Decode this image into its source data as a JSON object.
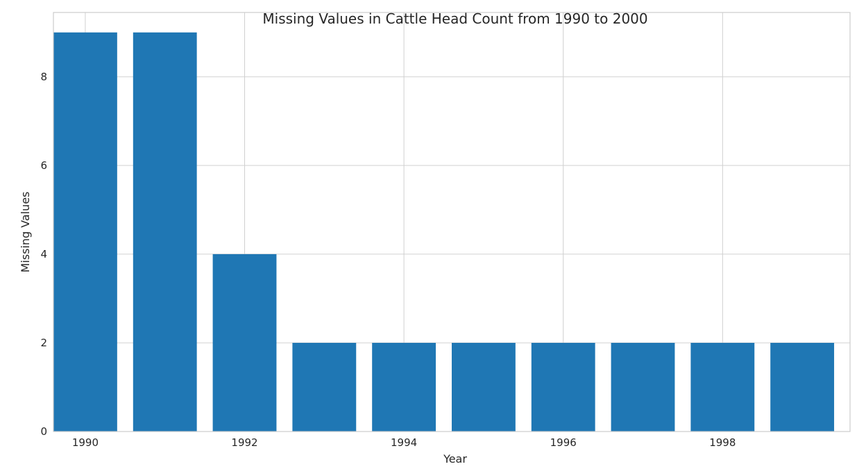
{
  "chart_data": {
    "type": "bar",
    "title": "Missing Values in Cattle Head Count from 1990 to 2000",
    "xlabel": "Year",
    "ylabel": "Missing Values",
    "x": [
      1990,
      1991,
      1992,
      1993,
      1994,
      1995,
      1996,
      1997,
      1998,
      1999
    ],
    "values": [
      9,
      9,
      4,
      2,
      2,
      2,
      2,
      2,
      2,
      2
    ],
    "xticks": [
      "1990",
      "1992",
      "1994",
      "1996",
      "1998"
    ],
    "yticks": [
      "0",
      "2",
      "4",
      "6",
      "8"
    ],
    "ylim": [
      0,
      9.45
    ],
    "xlim": [
      1989.6,
      1999.6
    ],
    "grid": true,
    "bar_color": "#1f77b4"
  }
}
